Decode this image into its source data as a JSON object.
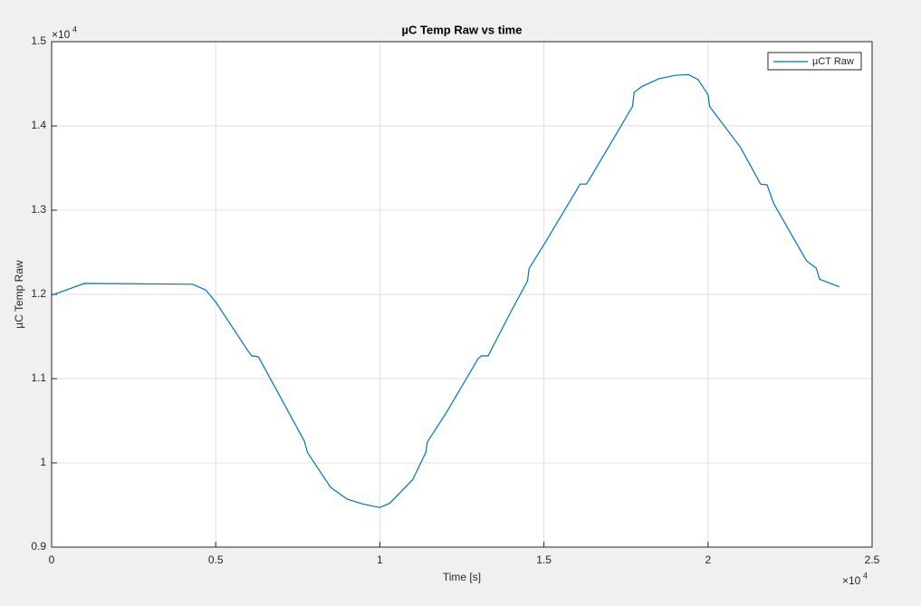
{
  "chart_data": {
    "type": "line",
    "title": "µC Temp Raw vs time",
    "x_label": "Time [s]",
    "y_label": "µC Temp Raw",
    "x_exponent_base": "×10",
    "x_exponent": "4",
    "y_exponent_base": "×10",
    "y_exponent": "4",
    "xlim": [
      0,
      2.5
    ],
    "ylim": [
      0.9,
      1.5
    ],
    "xticks": [
      0,
      0.5,
      1,
      1.5,
      2,
      2.5
    ],
    "yticks": [
      0.9,
      1,
      1.1,
      1.2,
      1.3,
      1.4,
      1.5
    ],
    "grid": true,
    "legend_position": "upper-right",
    "x": [
      0,
      0.1,
      0.43,
      0.47,
      0.5,
      0.6,
      0.61,
      0.63,
      0.7,
      0.77,
      0.78,
      0.85,
      0.9,
      0.95,
      1.0,
      1.03,
      1.1,
      1.14,
      1.145,
      1.2,
      1.3,
      1.31,
      1.33,
      1.4,
      1.45,
      1.455,
      1.5,
      1.6,
      1.61,
      1.63,
      1.7,
      1.77,
      1.775,
      1.8,
      1.85,
      1.9,
      1.94,
      1.97,
      2.0,
      2.005,
      2.1,
      2.16,
      2.18,
      2.2,
      2.3,
      2.33,
      2.34,
      2.4
    ],
    "series": [
      {
        "name": "µCT Raw",
        "color": "#0072bd",
        "values": [
          1.199,
          1.213,
          1.212,
          1.205,
          1.191,
          1.132,
          1.127,
          1.126,
          1.076,
          1.026,
          1.012,
          0.971,
          0.957,
          0.951,
          0.947,
          0.952,
          0.98,
          1.012,
          1.025,
          1.058,
          1.124,
          1.127,
          1.127,
          1.18,
          1.216,
          1.231,
          1.259,
          1.324,
          1.331,
          1.331,
          1.377,
          1.423,
          1.44,
          1.447,
          1.456,
          1.46,
          1.461,
          1.455,
          1.437,
          1.423,
          1.374,
          1.331,
          1.33,
          1.308,
          1.24,
          1.231,
          1.218,
          1.209
        ]
      }
    ]
  }
}
